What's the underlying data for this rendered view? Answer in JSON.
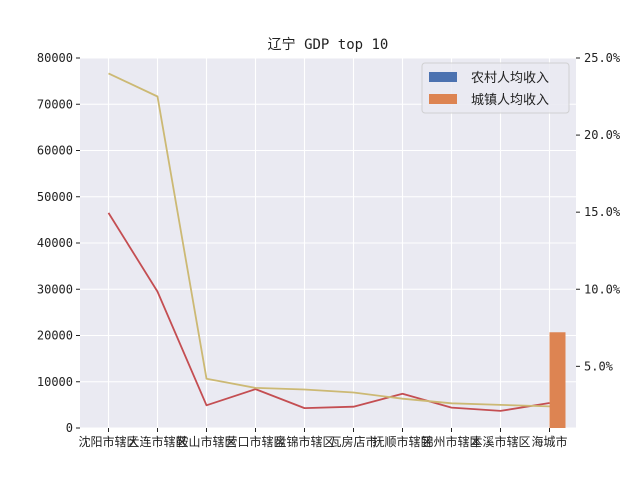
{
  "chart_data": {
    "type": "bar",
    "title": "辽宁 GDP top 10",
    "categories": [
      "沈阳市辖区",
      "大连市辖区",
      "鞍山市辖区",
      "营口市辖区",
      "盘锦市辖区",
      "瓦房店市",
      "抚顺市辖区",
      "锦州市辖区",
      "本溪市辖区",
      "海城市"
    ],
    "ylim_left": [
      0,
      80000
    ],
    "yticks_left": [
      "0",
      "10000",
      "20000",
      "30000",
      "40000",
      "50000",
      "60000",
      "70000",
      "80000"
    ],
    "ylim_right": [
      0.01,
      0.25
    ],
    "yticks_right": [
      "5.0%",
      "10.0%",
      "15.0%",
      "20.0%",
      "25.0%"
    ],
    "grid": true,
    "legend_position": "top-right",
    "series": [
      {
        "name": "农村人均收入",
        "type": "bar",
        "axis": "left",
        "color": "#4c72b0",
        "values": [
          0,
          0,
          0,
          0,
          0,
          0,
          0,
          0,
          0,
          0
        ]
      },
      {
        "name": "城镇人均收入",
        "type": "bar",
        "axis": "left",
        "color": "#dd8452",
        "values": [
          0,
          0,
          0,
          0,
          0,
          0,
          0,
          0,
          0,
          20700
        ]
      },
      {
        "type": "line",
        "axis": "left",
        "color": "#c44e52",
        "values": [
          46500,
          29500,
          4900,
          8400,
          4300,
          4600,
          7400,
          4400,
          3700,
          5400
        ]
      },
      {
        "type": "line",
        "axis": "right",
        "color": "#ccb974",
        "values": [
          0.24,
          0.225,
          0.042,
          0.036,
          0.035,
          0.033,
          0.029,
          0.026,
          0.025,
          0.024
        ]
      }
    ]
  }
}
